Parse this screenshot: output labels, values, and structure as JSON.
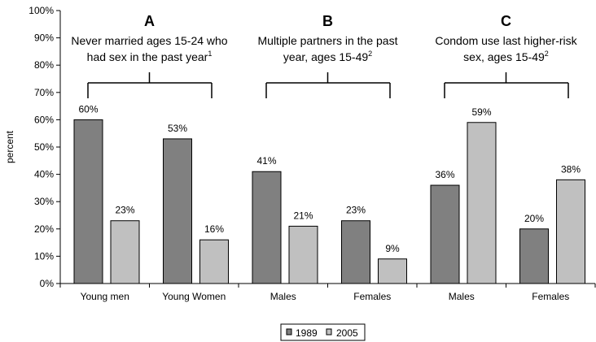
{
  "chart_data": {
    "type": "bar",
    "ylabel": "percent",
    "ylim": [
      0,
      100
    ],
    "yticks": [
      "0%",
      "10%",
      "20%",
      "30%",
      "40%",
      "50%",
      "60%",
      "70%",
      "80%",
      "90%",
      "100%"
    ],
    "categories": [
      "Young men",
      "Young Women",
      "Males",
      "Females",
      "Males",
      "Females"
    ],
    "series": [
      {
        "name": "1989",
        "color": "#808080",
        "values": [
          60,
          53,
          41,
          23,
          36,
          20
        ],
        "labels": [
          "60%",
          "53%",
          "41%",
          "23%",
          "36%",
          "20%"
        ]
      },
      {
        "name": "2005",
        "color": "#c0c0c0",
        "values": [
          23,
          16,
          21,
          9,
          59,
          38
        ],
        "labels": [
          "23%",
          "16%",
          "21%",
          "9%",
          "59%",
          "38%"
        ]
      }
    ],
    "panels": [
      {
        "letter": "A",
        "title_line1": "Never married ages 15-24 who",
        "title_line2": "had sex in the past year",
        "sup": "1"
      },
      {
        "letter": "B",
        "title_line1": "Multiple partners in the past",
        "title_line2": "year, ages 15-49",
        "sup": "2"
      },
      {
        "letter": "C",
        "title_line1": "Condom use last higher-risk",
        "title_line2": "sex, ages 15-49",
        "sup": "2"
      }
    ],
    "legend_position": "bottom",
    "grid": false
  }
}
